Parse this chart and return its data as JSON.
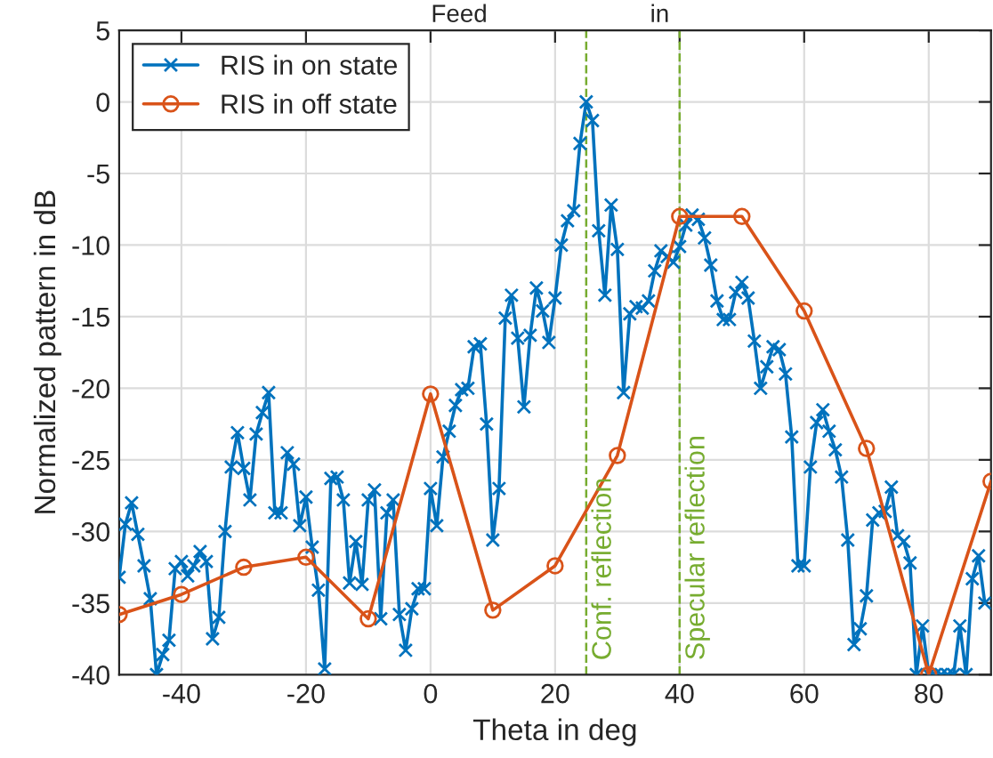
{
  "chart_data": {
    "type": "line",
    "xlabel": "Theta in deg",
    "ylabel": "Normalized pattern in dB",
    "annotations": [
      "Feed",
      "in"
    ],
    "xlim": [
      -50,
      90
    ],
    "ylim": [
      -40,
      5
    ],
    "xticks": [
      -40,
      -20,
      0,
      20,
      40,
      60,
      80
    ],
    "yticks": [
      -40,
      -35,
      -30,
      -25,
      -20,
      -15,
      -10,
      -5,
      0,
      5
    ],
    "grid": true,
    "legend": "top left",
    "line_style": "solid",
    "ref_lines": [
      {
        "axis": "x",
        "value": 25,
        "label": "Conf. reflection",
        "color": "#77ac30",
        "line_style": "dashed"
      },
      {
        "axis": "x",
        "value": 40,
        "label": "Specular reflection",
        "color": "#77ac30",
        "line_style": "dashed"
      }
    ],
    "series": [
      {
        "name": "RIS in on state",
        "color": "#0072bd",
        "marker": "cross",
        "x": [
          -50,
          -49,
          -48,
          -47,
          -46,
          -45,
          -44,
          -43,
          -42,
          -41,
          -40,
          -39,
          -38,
          -37,
          -36,
          -35,
          -34,
          -33,
          -32,
          -31,
          -30,
          -29,
          -28,
          -27,
          -26,
          -25,
          -24,
          -23,
          -22,
          -21,
          -20,
          -19,
          -18,
          -17,
          -16,
          -15,
          -14,
          -13,
          -12,
          -11,
          -10,
          -9,
          -8,
          -7,
          -6,
          -5,
          -4,
          -3,
          -2,
          -1,
          0,
          1,
          2,
          3,
          4,
          5,
          6,
          7,
          8,
          9,
          10,
          11,
          12,
          13,
          14,
          15,
          16,
          17,
          18,
          19,
          20,
          21,
          22,
          23,
          24,
          25,
          26,
          27,
          28,
          29,
          30,
          31,
          32,
          33,
          34,
          35,
          36,
          37,
          38,
          39,
          40,
          41,
          42,
          43,
          44,
          45,
          46,
          47,
          48,
          49,
          50,
          51,
          52,
          53,
          54,
          55,
          56,
          57,
          58,
          59,
          60,
          61,
          62,
          63,
          64,
          65,
          66,
          67,
          68,
          69,
          70,
          71,
          72,
          73,
          74,
          75,
          76,
          77,
          78,
          79,
          80,
          81,
          82,
          83,
          84,
          85,
          86,
          87,
          88,
          89
        ],
        "values": [
          -33.2,
          -29.5,
          -28.0,
          -30.2,
          -32.4,
          -34.7,
          -40,
          -38.6,
          -37.6,
          -32.6,
          -32.1,
          -33.1,
          -32.4,
          -31.4,
          -32.1,
          -37.5,
          -36.0,
          -30.0,
          -25.5,
          -23.1,
          -25.6,
          -27.8,
          -23.2,
          -21.7,
          -20.3,
          -28.7,
          -28.7,
          -24.5,
          -25.3,
          -29.6,
          -27.6,
          -31.1,
          -34.1,
          -39.6,
          -26.3,
          -26.2,
          -27.8,
          -33.6,
          -30.7,
          -33.7,
          -27.8,
          -27.1,
          -36.1,
          -28.7,
          -27.8,
          -35.8,
          -38.3,
          -35.4,
          -34.0,
          -34.0,
          -27.0,
          -29.6,
          -24.8,
          -23.0,
          -21.2,
          -20.1,
          -20.0,
          -17.1,
          -16.9,
          -22.5,
          -30.6,
          -27.0,
          -15.1,
          -13.5,
          -16.5,
          -21.3,
          -16.3,
          -13.0,
          -14.6,
          -16.8,
          -13.7,
          -10.0,
          -8.3,
          -7.6,
          -2.9,
          0,
          -1.3,
          -9.0,
          -13.5,
          -7.2,
          -10.3,
          -20.3,
          -14.8,
          -14.3,
          -14.4,
          -13.9,
          -11.8,
          -10.4,
          -10.8,
          -11.2,
          -10.1,
          -8.6,
          -7.9,
          -8.2,
          -9.5,
          -11.4,
          -13.9,
          -15.2,
          -15.2,
          -13.3,
          -12.6,
          -13.7,
          -16.7,
          -20.0,
          -18.5,
          -17.1,
          -17.3,
          -19.0,
          -23.4,
          -32.4,
          -32.4,
          -25.5,
          -22.4,
          -21.5,
          -23.0,
          -24.3,
          -26.2,
          -30.6,
          -37.9,
          -36.8,
          -34.5,
          -29.2,
          -28.7,
          -28.6,
          -26.9,
          -30.3,
          -30.7,
          -32.2,
          -40,
          -36.6,
          -40,
          -40,
          -40,
          -40,
          -40,
          -36.6,
          -40,
          -33.3,
          -31.7,
          -35.0
        ]
      },
      {
        "name": "RIS in off state",
        "color": "#d95319",
        "marker": "circle",
        "x": [
          -50,
          -40,
          -30,
          -20,
          -10,
          0,
          10,
          20,
          30,
          40,
          50,
          60,
          70,
          80,
          90
        ],
        "values": [
          -35.8,
          -34.4,
          -32.5,
          -31.8,
          -36.1,
          -20.4,
          -35.5,
          -32.4,
          -24.7,
          -8.0,
          -8.0,
          -14.6,
          -24.2,
          -40,
          -26.5
        ]
      }
    ]
  }
}
